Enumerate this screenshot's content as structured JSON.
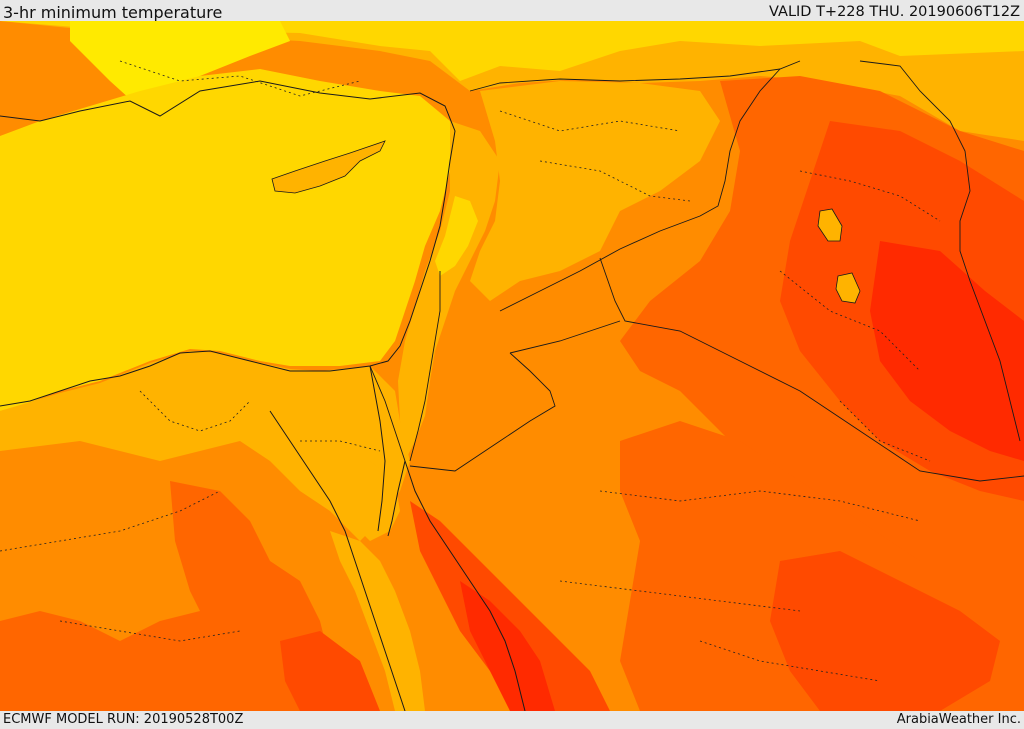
{
  "header": {
    "title": "3-hr minimum temperature",
    "valid": "VALID T+228 THU. 20190606T12Z"
  },
  "footer": {
    "model_run": "ECMWF MODEL RUN: 20190528T00Z",
    "credit": "ArabiaWeather Inc."
  },
  "colors": {
    "pale_yellow": "#ffea00",
    "yellow": "#ffd700",
    "light_orange": "#ffb300",
    "orange": "#ff8c00",
    "dark_orange": "#ff6600",
    "red_orange": "#ff4a00",
    "red": "#ff2a00",
    "border_line": "#1a1a1a"
  }
}
